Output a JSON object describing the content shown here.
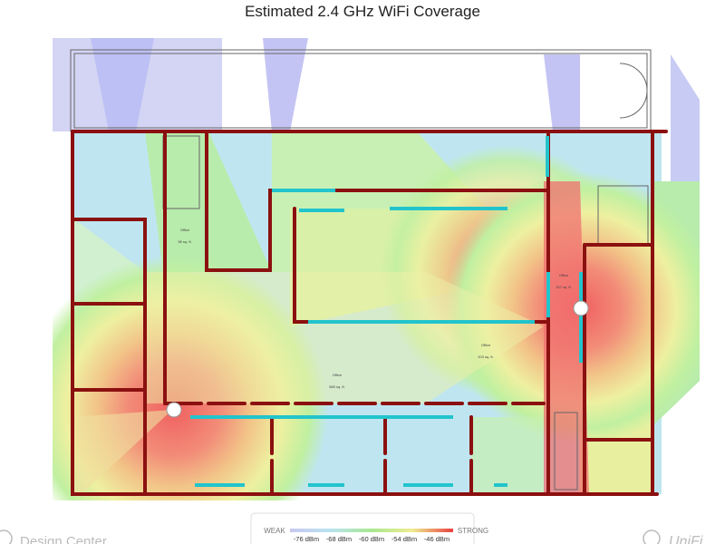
{
  "title": "Estimated 2.4 GHz WiFi Coverage",
  "legend": {
    "weak": "WEAK",
    "strong": "STRONG",
    "levels": [
      "-76 dBm",
      "-68 dBm",
      "-60 dBm",
      "-54 dBm",
      "-46 dBm"
    ]
  },
  "rooms": [
    {
      "name": "Office",
      "area": "98 sq. ft."
    },
    {
      "name": "Office",
      "area": "157 sq. ft."
    },
    {
      "name": "Office",
      "area": "585 sq. ft."
    },
    {
      "name": "Office",
      "area": "203 sq. ft."
    }
  ],
  "footer": {
    "left": "Design Center",
    "right": "UniFi"
  }
}
